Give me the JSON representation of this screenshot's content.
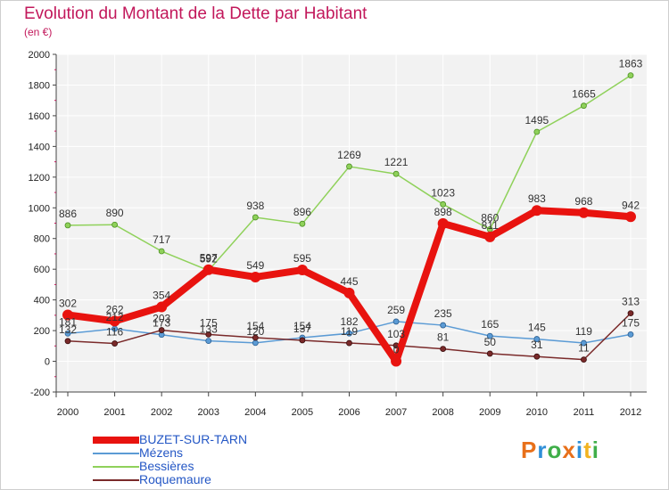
{
  "chart_data": {
    "type": "line",
    "title": "Evolution du Montant de la Dette par Habitant",
    "subtitle": "(en €)",
    "categories": [
      "2000",
      "2001",
      "2002",
      "2003",
      "2004",
      "2005",
      "2006",
      "2007",
      "2008",
      "2009",
      "2010",
      "2011",
      "2012"
    ],
    "ylim": [
      -200,
      2000
    ],
    "yticks": [
      -200,
      0,
      200,
      400,
      600,
      800,
      1000,
      1200,
      1400,
      1600,
      1800,
      2000
    ],
    "grid": true,
    "legend_position": "bottom-left",
    "series": [
      {
        "name": "BUZET-SUR-TARN",
        "color": "#e8130f",
        "values": [
          302,
          262,
          354,
          597,
          549,
          595,
          445,
          0,
          898,
          811,
          983,
          968,
          942
        ]
      },
      {
        "name": "Mézens",
        "color": "#5b9bd5",
        "values": [
          181,
          212,
          173,
          133,
          120,
          154,
          182,
          259,
          235,
          165,
          145,
          119,
          175
        ]
      },
      {
        "name": "Bessières",
        "color": "#8fd15a",
        "values": [
          886,
          890,
          717,
          592,
          938,
          896,
          1269,
          1221,
          1023,
          860,
          1495,
          1665,
          1863
        ]
      },
      {
        "name": "Roquemaure",
        "color": "#7a2a2a",
        "values": [
          132,
          116,
          203,
          175,
          154,
          137,
          119,
          103,
          81,
          50,
          31,
          11,
          313
        ]
      }
    ]
  },
  "logo": {
    "letters": [
      "P",
      "r",
      "o",
      "x",
      "i",
      "t",
      "i"
    ],
    "colors": [
      "#e8701a",
      "#2f8fd8",
      "#3fae49",
      "#e8701a",
      "#2f8fd8",
      "#f2b320",
      "#3fae49"
    ]
  }
}
